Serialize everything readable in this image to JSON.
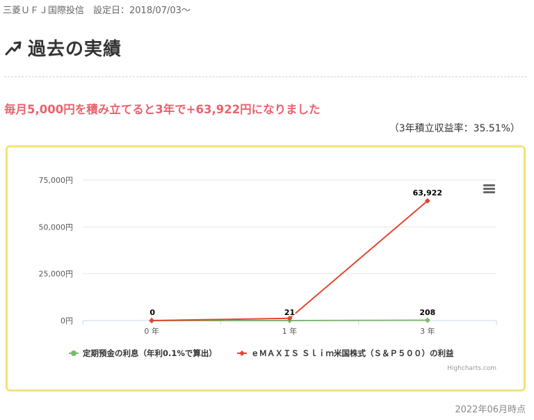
{
  "header": {
    "fund_info": "三菱ＵＦＪ国際投信　設定日：2018/07/03〜",
    "title": "過去の実績",
    "title_icon": "trend-up-arrow-icon"
  },
  "summary": {
    "headline": "毎月5,000円を積み立てると3年で+63,922円になりました",
    "rate": "（3年積立収益率：35.51%）",
    "accent_color": "#e8636e"
  },
  "chart_data": {
    "type": "line",
    "categories": [
      "0 年",
      "1 年",
      "3 年"
    ],
    "series": [
      {
        "name": "定期預金の利息（年利0.1%で算出）",
        "color": "#7cb870",
        "values": [
          0,
          21,
          208
        ],
        "show_labels": false
      },
      {
        "name": "ｅＭＡＸＩＳ Ｓｌｉｍ米国株式（Ｓ＆Ｐ５００）の利益",
        "color": "#e2452f",
        "values": [
          0,
          1200,
          63922
        ],
        "show_labels": true
      }
    ],
    "data_labels": [
      "0",
      "21",
      "208",
      "63,922"
    ],
    "y_ticks": [
      "0円",
      "25,000円",
      "50,000円",
      "75,000円"
    ],
    "ylim": [
      0,
      75000
    ],
    "grid": true,
    "legend_position": "bottom",
    "credit": "Highcharts.com",
    "menu_icon": "hamburger-menu-icon"
  },
  "footer": {
    "date": "2022年06月時点"
  }
}
